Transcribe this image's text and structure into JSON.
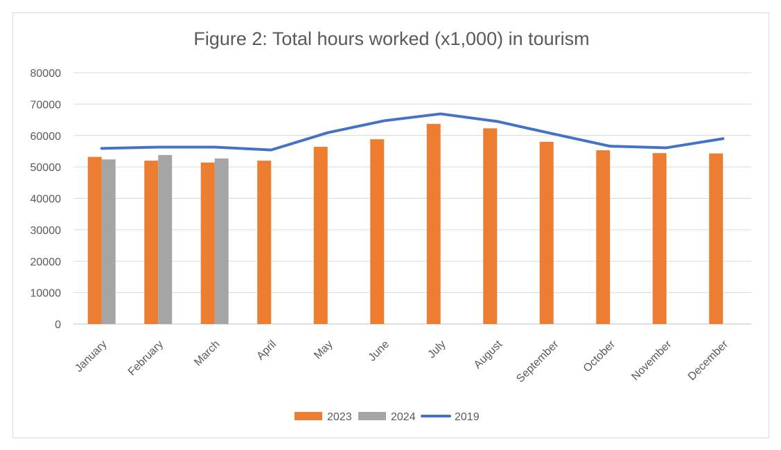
{
  "chart_data": {
    "type": "bar",
    "title": "Figure 2: Total hours worked (x1,000) in tourism",
    "xlabel": "",
    "ylabel": "",
    "ylim": [
      0,
      80000
    ],
    "yticks": [
      0,
      10000,
      20000,
      30000,
      40000,
      50000,
      60000,
      70000,
      80000
    ],
    "grid": true,
    "legend_position": "bottom",
    "categories": [
      "January",
      "February",
      "March",
      "April",
      "May",
      "June",
      "July",
      "August",
      "September",
      "October",
      "November",
      "December"
    ],
    "series": [
      {
        "name": "2023",
        "kind": "bar",
        "color": "#ed7d31",
        "values": [
          53200,
          52000,
          51400,
          52000,
          56400,
          58800,
          63700,
          62300,
          58000,
          55300,
          54400,
          54300
        ]
      },
      {
        "name": "2024",
        "kind": "bar",
        "color": "#a5a5a5",
        "values": [
          52400,
          53800,
          52700,
          null,
          null,
          null,
          null,
          null,
          null,
          null,
          null,
          null
        ]
      },
      {
        "name": "2019",
        "kind": "line",
        "color": "#4472c4",
        "values": [
          55900,
          56300,
          56300,
          55400,
          60900,
          64700,
          66900,
          64500,
          60500,
          56600,
          56100,
          59000
        ]
      }
    ]
  }
}
